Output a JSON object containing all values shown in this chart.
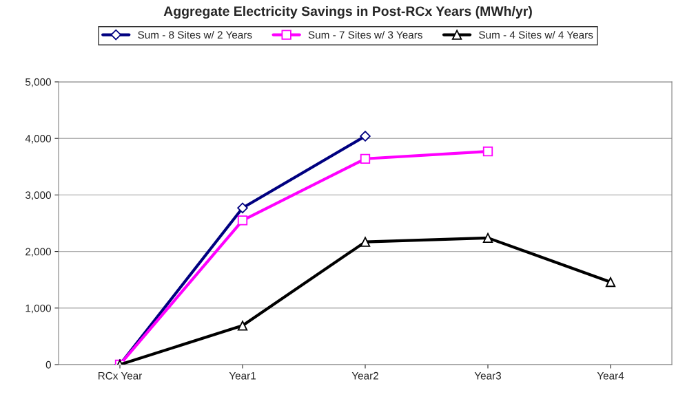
{
  "chart_data": {
    "type": "line",
    "title": "Aggregate Electricity Savings in Post-RCx Years (MWh/yr)",
    "categories": [
      "RCx Year",
      "Year1",
      "Year2",
      "Year3",
      "Year4"
    ],
    "series": [
      {
        "name": "Sum - 8 Sites w/ 2 Years",
        "color": "#000080",
        "marker": "diamond",
        "values": [
          0,
          2770,
          4040,
          null,
          null
        ]
      },
      {
        "name": "Sum - 7 Sites w/ 3 Years",
        "color": "#ff00ff",
        "marker": "square",
        "values": [
          0,
          2550,
          3640,
          3770,
          null
        ]
      },
      {
        "name": "Sum - 4 Sites w/ 4 Years",
        "color": "#000000",
        "marker": "triangle",
        "values": [
          0,
          690,
          2170,
          2240,
          1460
        ]
      }
    ],
    "ylim": [
      0,
      5000
    ],
    "yticks": [
      {
        "value": 0,
        "label": "0"
      },
      {
        "value": 1000,
        "label": "1,000"
      },
      {
        "value": 2000,
        "label": "2,000"
      },
      {
        "value": 3000,
        "label": "3,000"
      },
      {
        "value": 4000,
        "label": "4,000"
      },
      {
        "value": 5000,
        "label": "5,000"
      }
    ],
    "grid": "y",
    "legend": "top"
  }
}
